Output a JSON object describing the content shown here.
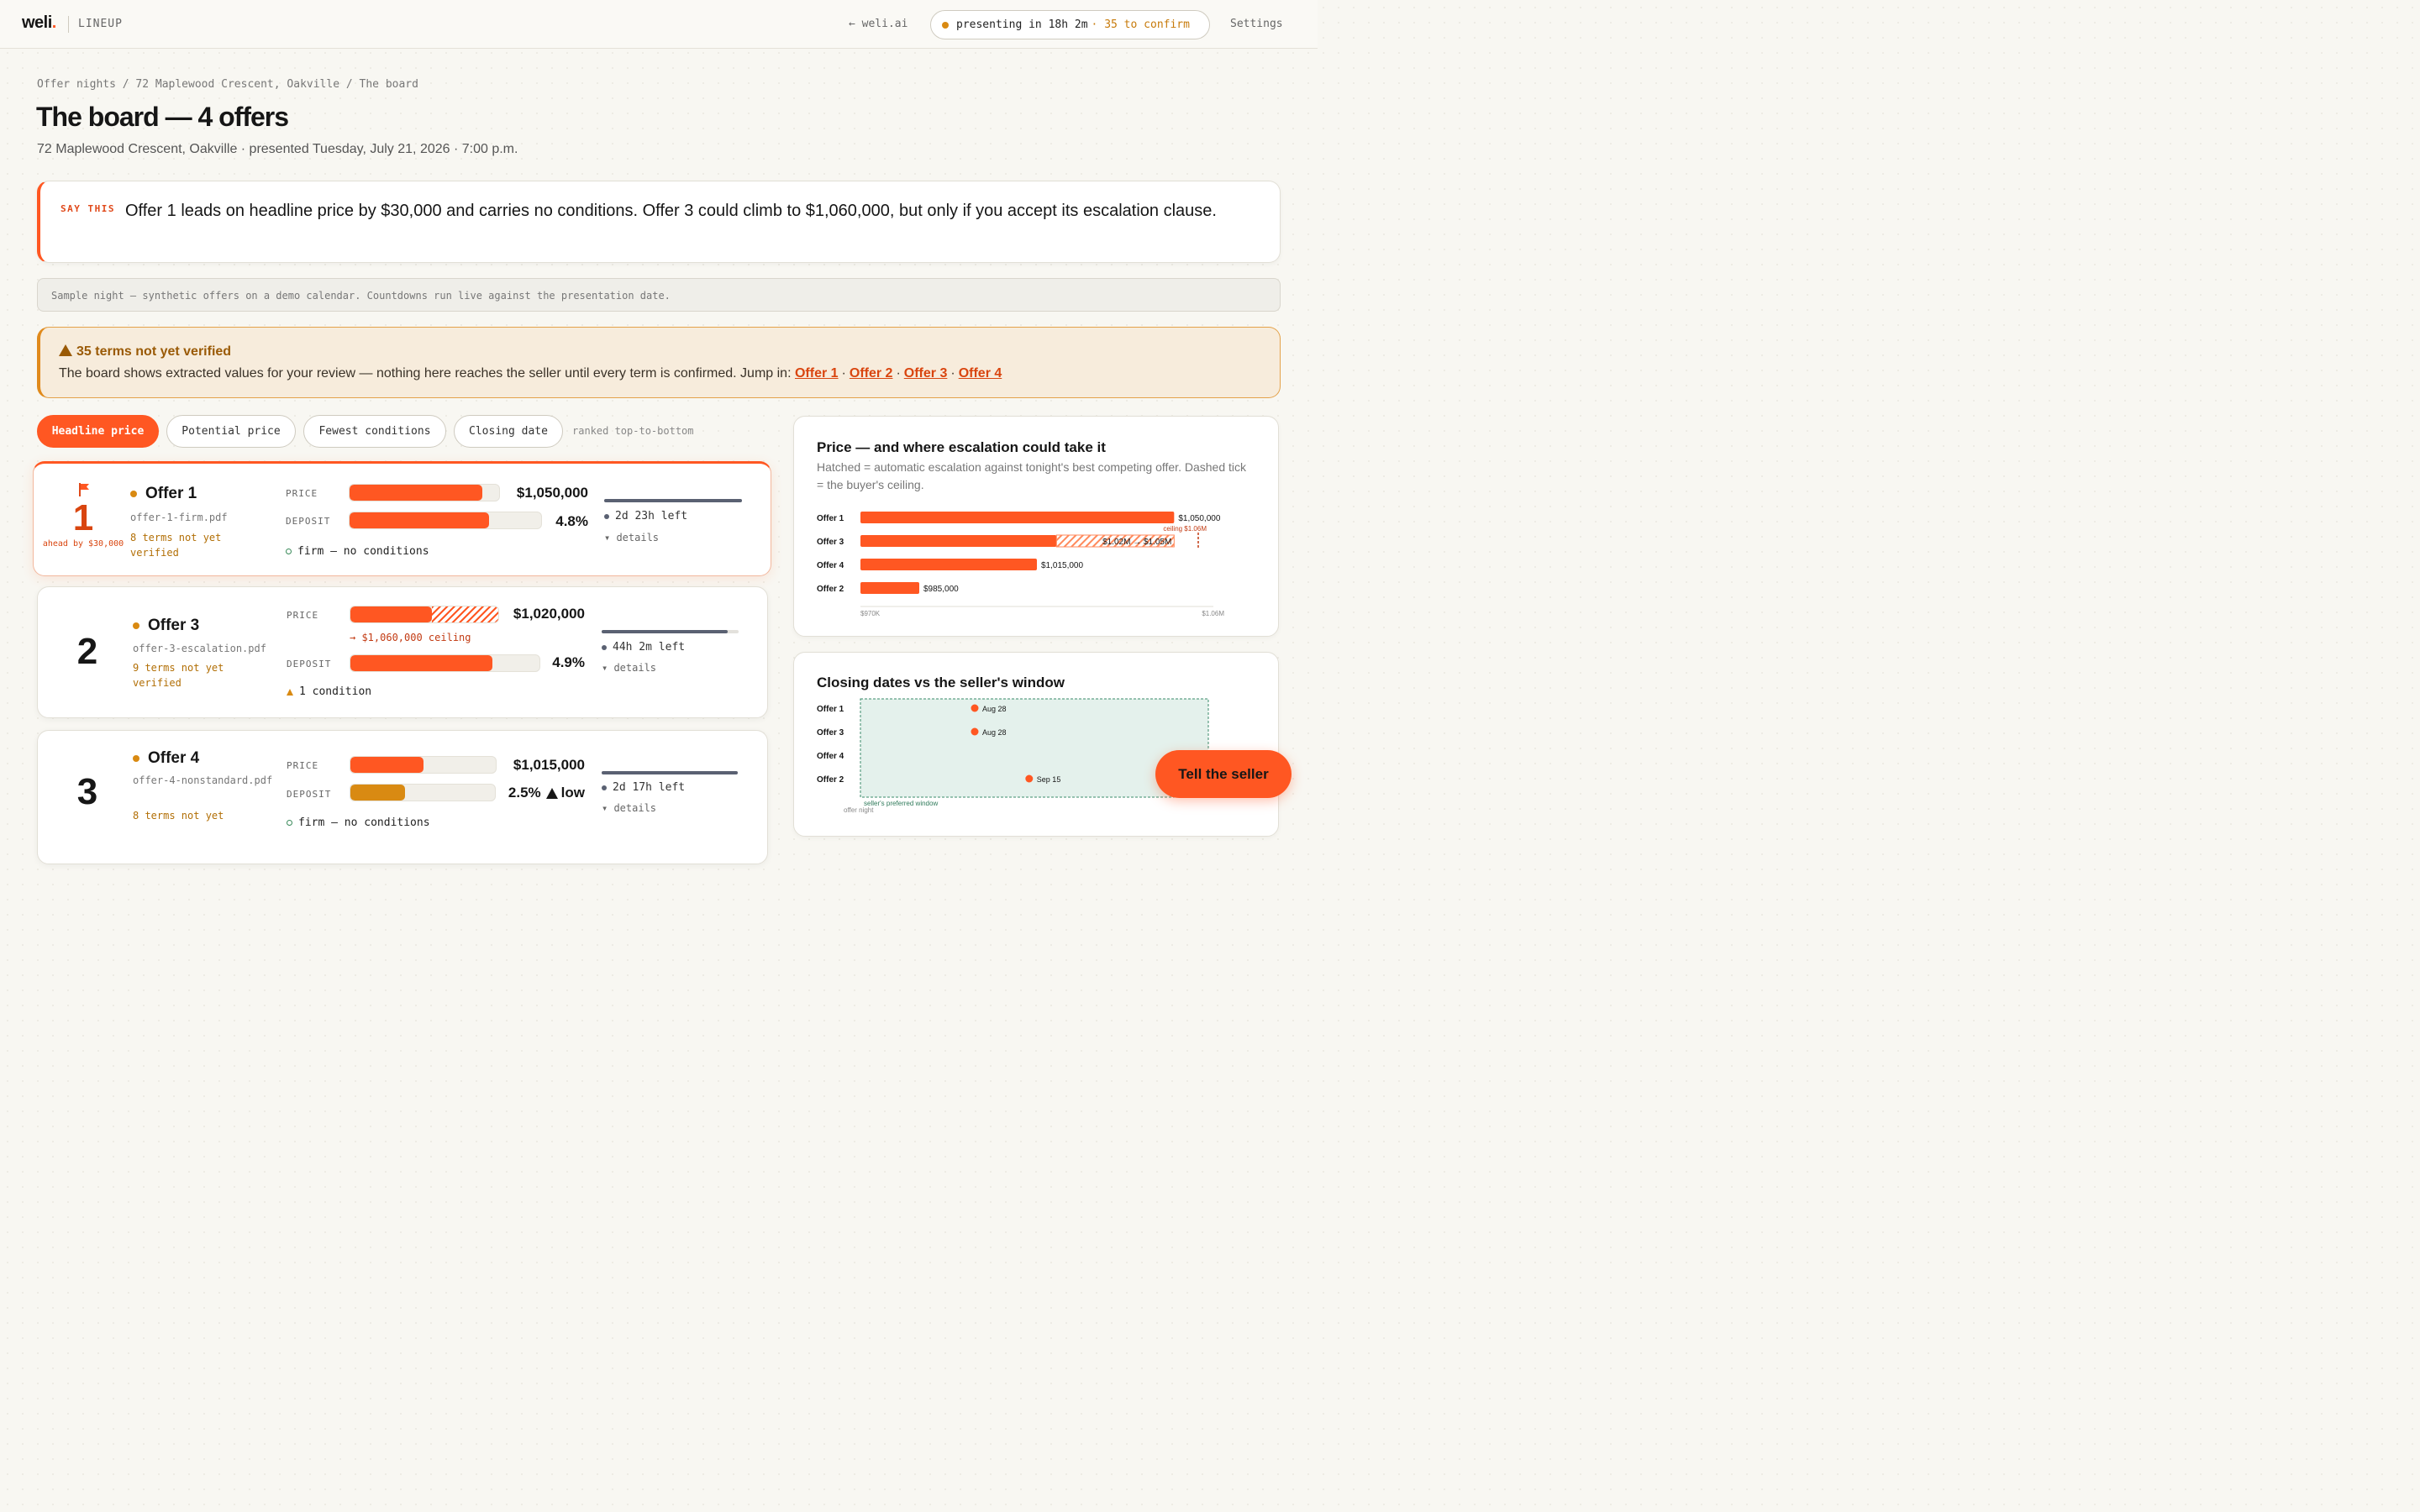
{
  "header": {
    "logo": "weli",
    "logo_dot": ".",
    "section": "LINEUP",
    "back_link": "← weli.ai",
    "presenting": "presenting in 18h 2m",
    "confirm": "· 35 to confirm",
    "settings": "Settings"
  },
  "breadcrumb": "Offer nights / 72 Maplewood Crescent, Oakville / The board",
  "title": "The board — 4 offers",
  "subtitle": "72 Maplewood Crescent, Oakville · presented Tuesday, July 21, 2026 · 7:00 p.m.",
  "say_this": {
    "label": "SAY THIS",
    "text": "Offer 1 leads on headline price by $30,000 and carries no conditions. Offer 3 could climb to $1,060,000, but only if you accept its escalation clause."
  },
  "sample_note": "Sample night — synthetic offers on a demo calendar. Countdowns run live against the presentation date.",
  "warning": {
    "title": "35 terms not yet verified",
    "text": "The board shows extracted values for your review — nothing here reaches the seller until every term is confirmed. Jump in:",
    "links": [
      "Offer 1",
      "Offer 2",
      "Offer 3",
      "Offer 4"
    ]
  },
  "sort": {
    "options": [
      "Headline price",
      "Potential price",
      "Fewest conditions",
      "Closing date"
    ],
    "active": "Headline price",
    "note": "ranked top-to-bottom"
  },
  "offers": [
    {
      "rank": "1",
      "ahead": "ahead by $30,000",
      "name": "Offer 1",
      "file": "offer-1-firm.pdf",
      "unverified": "8 terms not yet verified",
      "price_label": "PRICE",
      "price": "$1,050,000",
      "price_fill": 0.89,
      "deposit_label": "DEPOSIT",
      "deposit": "4.8%",
      "deposit_fill": 0.73,
      "condition": "firm — no conditions",
      "time_left": "2d 23h left",
      "time_fill": 1.0,
      "details": "▾ details"
    },
    {
      "rank": "2",
      "name": "Offer 3",
      "file": "offer-3-escalation.pdf",
      "unverified": "9 terms not yet verified",
      "price_label": "PRICE",
      "price": "$1,020,000",
      "price_fill": 0.55,
      "price_hatch_to": 1.0,
      "ceiling": "→ $1,060,000 ceiling",
      "deposit_label": "DEPOSIT",
      "deposit": "4.9%",
      "deposit_fill": 0.75,
      "condition": "1 condition",
      "time_left": "44h 2m left",
      "time_fill": 0.92,
      "details": "▾ details"
    },
    {
      "rank": "3",
      "name": "Offer 4",
      "file": "offer-4-nonstandard.pdf",
      "unverified": "8 terms not yet",
      "price_label": "PRICE",
      "price": "$1,015,000",
      "price_fill": 0.5,
      "deposit_label": "DEPOSIT",
      "deposit": "2.5%",
      "deposit_low": "low",
      "deposit_fill": 0.38,
      "condition": "firm — no conditions",
      "time_left": "2d 17h left",
      "time_fill": 1.0,
      "details": "▾ details"
    }
  ],
  "price_chart": {
    "title": "Price — and where escalation could take it",
    "subtitle": "Hatched = automatic escalation against tonight's best competing offer. Dashed tick = the buyer's ceiling."
  },
  "closing_chart": {
    "title": "Closing dates vs the seller's window",
    "window_label": "seller's preferred window",
    "start_label": "offer night"
  },
  "fab_label": "Tell the seller",
  "colors": {
    "accent": "#ff5722",
    "amber": "#d98a12",
    "warning_bg": "#f7ecdc",
    "window_fill": "#e4f1ec"
  },
  "chart_data": [
    {
      "type": "bar",
      "categories": [
        "Offer 1",
        "Offer 3",
        "Offer 4",
        "Offer 2"
      ],
      "values": [
        1050000,
        1020000,
        1015000,
        985000
      ],
      "value_labels": [
        "$1,050,000",
        "$1.02M → $1.05M",
        "$1,015,000",
        "$985,000"
      ],
      "escalation": {
        "category": "Offer 3",
        "from": 1020000,
        "to": 1050000,
        "ceiling": 1060000,
        "ceiling_label": "ceiling $1.06M"
      },
      "xlim": [
        970000,
        1060000
      ],
      "tick_labels": [
        "$970K",
        "$1.06M"
      ]
    },
    {
      "type": "scatter",
      "categories": [
        "Offer 1",
        "Offer 3",
        "Offer 4",
        "Offer 2"
      ],
      "values": [
        "Aug 28",
        "Aug 28",
        null,
        "Sep 15"
      ]
    }
  ]
}
